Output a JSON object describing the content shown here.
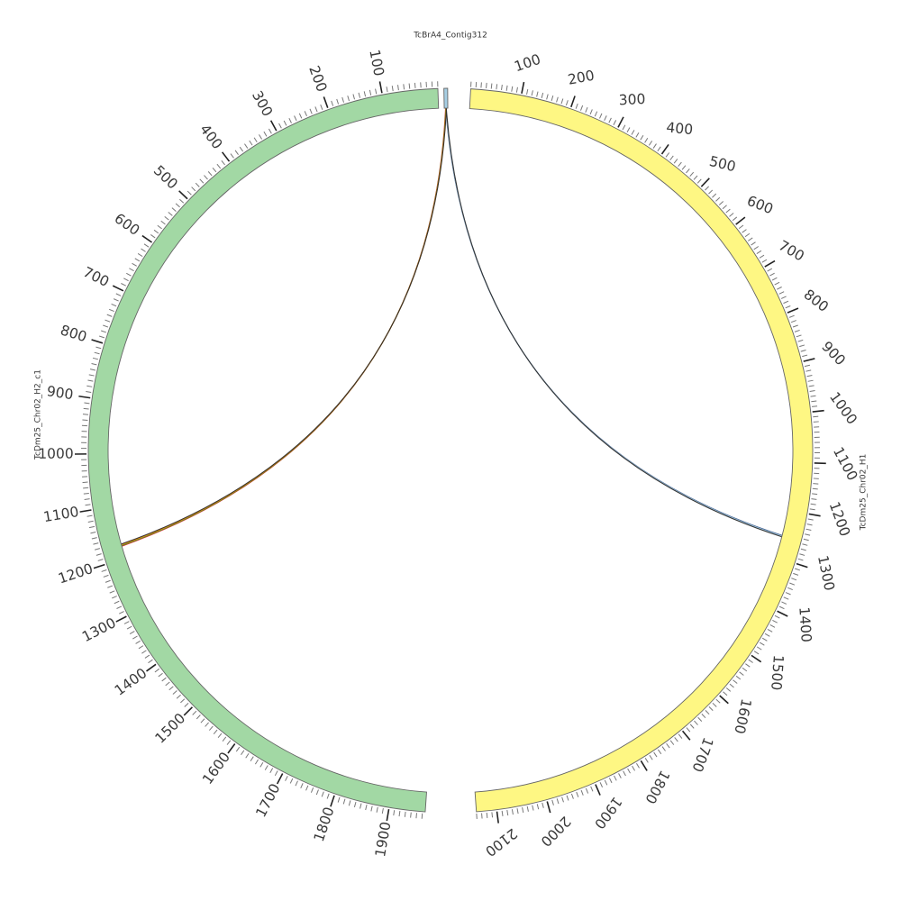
{
  "segments": [
    {
      "id": "chr02_h1",
      "name": "TcDm25_Chr02_H1",
      "length": 2140,
      "color": "#fef783",
      "orientation": "clockwise",
      "ticks": [
        "100",
        "200",
        "300",
        "400",
        "500",
        "600",
        "700",
        "800",
        "900",
        "1000",
        "1100",
        "1200",
        "1300",
        "1400",
        "1500",
        "1600",
        "1700",
        "1800",
        "1900",
        "2000",
        "2100"
      ]
    },
    {
      "id": "chr02_h2",
      "name": "TcDm25_Chr02_H2_c1",
      "length": 1965,
      "color": "#a2d8a4",
      "orientation": "counterclockwise",
      "ticks": [
        "100",
        "200",
        "300",
        "400",
        "500",
        "600",
        "700",
        "800",
        "900",
        "1000",
        "1100",
        "1200",
        "1300",
        "1400",
        "1500",
        "1600",
        "1700",
        "1800",
        "1900"
      ]
    },
    {
      "id": "contig312",
      "name": "TcBrA4_Contig312",
      "length": 10,
      "color": "#a6cee3",
      "orientation": "clockwise",
      "ticks": []
    }
  ],
  "links": [
    {
      "id": "contig-to-h1",
      "from": "TcBrA4_Contig312",
      "to": "TcDm25_Chr02_H1",
      "to_pos": 1255,
      "colors": [
        "#3b5b8c",
        "#a6cee3",
        "#2b2b2b"
      ]
    },
    {
      "id": "contig-to-h2",
      "from": "TcBrA4_Contig312",
      "to": "TcDm25_Chr02_H2_c1",
      "to_pos": 1175,
      "colors": [
        "#e31a1c",
        "#33a02c",
        "#ff7f00",
        "#2b2b2b"
      ]
    }
  ]
}
